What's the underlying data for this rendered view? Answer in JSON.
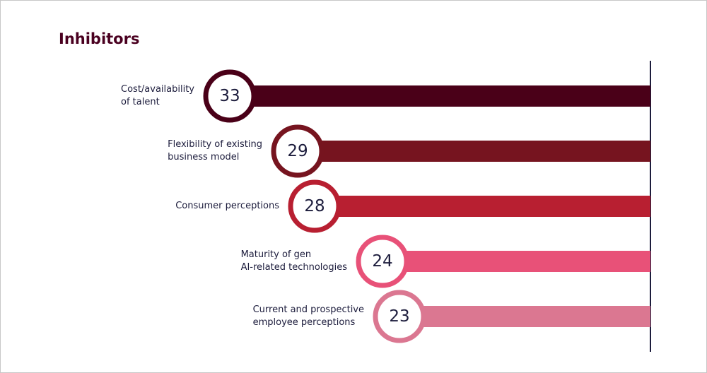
{
  "chart_data": {
    "type": "bar",
    "orientation": "horizontal",
    "title": "Inhibitors",
    "categories": [
      "Cost/availability\nof talent",
      "Flexibility of existing\nbusiness model",
      "Consumer perceptions",
      "Maturity of gen\nAI-related technologies",
      "Current and prospective\nemployee perceptions"
    ],
    "values": [
      33,
      29,
      28,
      24,
      23
    ],
    "colors": [
      "#4a0018",
      "#76141f",
      "#b81f31",
      "#e85178",
      "#db7791"
    ]
  }
}
